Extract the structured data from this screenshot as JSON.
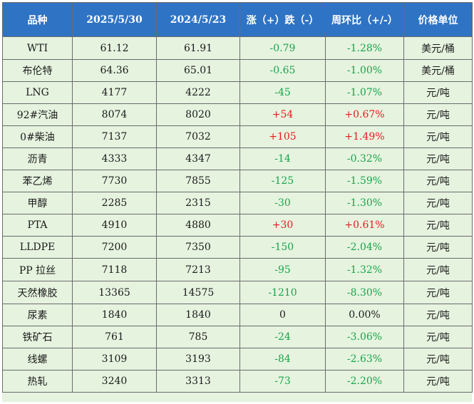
{
  "header": {
    "col_product": "品种",
    "col_date1": "2025/5/30",
    "col_date2": "2024/5/23",
    "col_change": "涨（+）跌（-）",
    "col_wow": "周环比（+/-）",
    "col_unit": "价格单位"
  },
  "colors": {
    "header_bg": "#2f73c4",
    "body_bg": "#e6f3df",
    "rise": "#e8191e",
    "fall": "#18a44a"
  },
  "rows": [
    {
      "name": "WTI",
      "v1": "61.12",
      "v2": "61.91",
      "change": "-0.79",
      "wow": "-1.28%",
      "unit": "美元/桶",
      "dir": "down"
    },
    {
      "name": "布伦特",
      "v1": "64.36",
      "v2": "65.01",
      "change": "-0.65",
      "wow": "-1.00%",
      "unit": "美元/桶",
      "dir": "down"
    },
    {
      "name": "LNG",
      "v1": "4177",
      "v2": "4222",
      "change": "-45",
      "wow": "-1.07%",
      "unit": "元/吨",
      "dir": "down"
    },
    {
      "name": "92#汽油",
      "v1": "8074",
      "v2": "8020",
      "change": "+54",
      "wow": "+0.67%",
      "unit": "元/吨",
      "dir": "up"
    },
    {
      "name": "0#柴油",
      "v1": "7137",
      "v2": "7032",
      "change": "+105",
      "wow": "+1.49%",
      "unit": "元/吨",
      "dir": "up"
    },
    {
      "name": "沥青",
      "v1": "4333",
      "v2": "4347",
      "change": "-14",
      "wow": "-0.32%",
      "unit": "元/吨",
      "dir": "down"
    },
    {
      "name": "苯乙烯",
      "v1": "7730",
      "v2": "7855",
      "change": "-125",
      "wow": "-1.59%",
      "unit": "元/吨",
      "dir": "down"
    },
    {
      "name": "甲醇",
      "v1": "2285",
      "v2": "2315",
      "change": "-30",
      "wow": "-1.30%",
      "unit": "元/吨",
      "dir": "down"
    },
    {
      "name": "PTA",
      "v1": "4910",
      "v2": "4880",
      "change": "+30",
      "wow": "+0.61%",
      "unit": "元/吨",
      "dir": "up"
    },
    {
      "name": "LLDPE",
      "v1": "7200",
      "v2": "7350",
      "change": "-150",
      "wow": "-2.04%",
      "unit": "元/吨",
      "dir": "down"
    },
    {
      "name": "PP 拉丝",
      "v1": "7118",
      "v2": "7213",
      "change": "-95",
      "wow": "-1.32%",
      "unit": "元/吨",
      "dir": "down"
    },
    {
      "name": "天然橡胶",
      "v1": "13365",
      "v2": "14575",
      "change": "-1210",
      "wow": "-8.30%",
      "unit": "元/吨",
      "dir": "down"
    },
    {
      "name": "尿素",
      "v1": "1840",
      "v2": "1840",
      "change": "0",
      "wow": "0.00%",
      "unit": "元/吨",
      "dir": "flat"
    },
    {
      "name": "铁矿石",
      "v1": "761",
      "v2": "785",
      "change": "-24",
      "wow": "-3.06%",
      "unit": "元/吨",
      "dir": "down"
    },
    {
      "name": "线螺",
      "v1": "3109",
      "v2": "3193",
      "change": "-84",
      "wow": "-2.63%",
      "unit": "元/吨",
      "dir": "down"
    },
    {
      "name": "热轧",
      "v1": "3240",
      "v2": "3313",
      "change": "-73",
      "wow": "-2.20%",
      "unit": "元/吨",
      "dir": "down"
    }
  ]
}
